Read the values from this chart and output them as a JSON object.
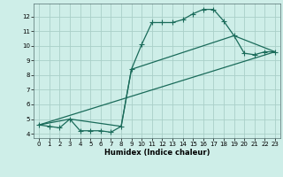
{
  "title": "",
  "xlabel": "Humidex (Indice chaleur)",
  "background_color": "#ceeee8",
  "grid_color": "#aacfc8",
  "line_color": "#1a6b5a",
  "xlim": [
    -0.5,
    23.5
  ],
  "ylim": [
    3.7,
    12.9
  ],
  "xticks": [
    0,
    1,
    2,
    3,
    4,
    5,
    6,
    7,
    8,
    9,
    10,
    11,
    12,
    13,
    14,
    15,
    16,
    17,
    18,
    19,
    20,
    21,
    22,
    23
  ],
  "yticks": [
    4,
    5,
    6,
    7,
    8,
    9,
    10,
    11,
    12
  ],
  "line1_x": [
    0,
    1,
    2,
    3,
    4,
    5,
    6,
    7,
    8,
    9,
    10,
    11,
    12,
    13,
    14,
    15,
    16,
    17,
    18,
    19,
    20,
    21,
    22,
    23
  ],
  "line1_y": [
    4.6,
    4.5,
    4.4,
    5.0,
    4.2,
    4.2,
    4.2,
    4.1,
    4.5,
    8.4,
    10.1,
    11.6,
    11.6,
    11.6,
    11.8,
    12.2,
    12.5,
    12.5,
    11.7,
    10.7,
    9.5,
    9.4,
    9.6,
    9.6
  ],
  "line2_x": [
    0,
    23
  ],
  "line2_y": [
    4.6,
    9.6
  ],
  "line3_x": [
    0,
    3,
    8,
    9,
    19,
    23
  ],
  "line3_y": [
    4.6,
    5.0,
    4.5,
    8.4,
    10.7,
    9.6
  ],
  "marker_size": 4,
  "linewidth": 0.9
}
